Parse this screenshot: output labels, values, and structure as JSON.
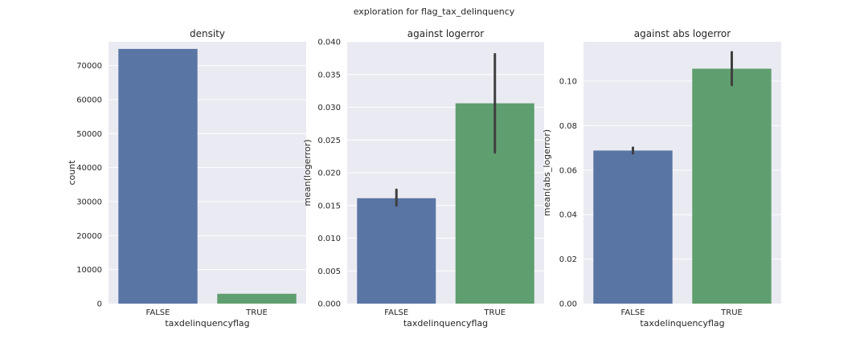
{
  "figure": {
    "suptitle": "exploration for flag_tax_delinquency"
  },
  "colors": {
    "background": "#EAEAF2",
    "grid": "#FFFFFF",
    "bar_false": "#5975A4",
    "bar_true": "#5F9E6E",
    "errorbar": "#3F3F3F"
  },
  "chart_data": [
    {
      "type": "bar",
      "title": "density",
      "xlabel": "taxdelinquencyflag",
      "ylabel": "count",
      "categories": [
        "FALSE",
        "TRUE"
      ],
      "values": [
        74900,
        2900
      ],
      "ylim": [
        0,
        77000
      ],
      "yticks": [
        0,
        10000,
        20000,
        30000,
        40000,
        50000,
        60000,
        70000
      ],
      "ytick_labels": [
        "0",
        "10000",
        "20000",
        "30000",
        "40000",
        "50000",
        "60000",
        "70000"
      ],
      "grid": true
    },
    {
      "type": "bar",
      "title": "against logerror",
      "xlabel": "taxdelinquencyflag",
      "ylabel": "mean(logerror)",
      "categories": [
        "FALSE",
        "TRUE"
      ],
      "values": [
        0.0161,
        0.0306
      ],
      "error_low": [
        0.015,
        0.0231
      ],
      "error_high": [
        0.0174,
        0.0381
      ],
      "ylim": [
        0,
        0.04
      ],
      "yticks": [
        0,
        0.005,
        0.01,
        0.015,
        0.02,
        0.025,
        0.03,
        0.035,
        0.04
      ],
      "ytick_labels": [
        "0.000",
        "0.005",
        "0.010",
        "0.015",
        "0.020",
        "0.025",
        "0.030",
        "0.035",
        "0.040"
      ],
      "grid": true
    },
    {
      "type": "bar",
      "title": "against abs logerror",
      "xlabel": "taxdelinquencyflag",
      "ylabel": "mean(abs_logerror)",
      "categories": [
        "FALSE",
        "TRUE"
      ],
      "values": [
        0.0688,
        0.1056
      ],
      "error_low": [
        0.0675,
        0.0983
      ],
      "error_high": [
        0.0701,
        0.113
      ],
      "ylim": [
        0,
        0.1177
      ],
      "yticks": [
        0,
        0.02,
        0.04,
        0.06,
        0.08,
        0.1
      ],
      "ytick_labels": [
        "0.00",
        "0.02",
        "0.04",
        "0.06",
        "0.08",
        "0.10"
      ],
      "grid": true
    }
  ]
}
